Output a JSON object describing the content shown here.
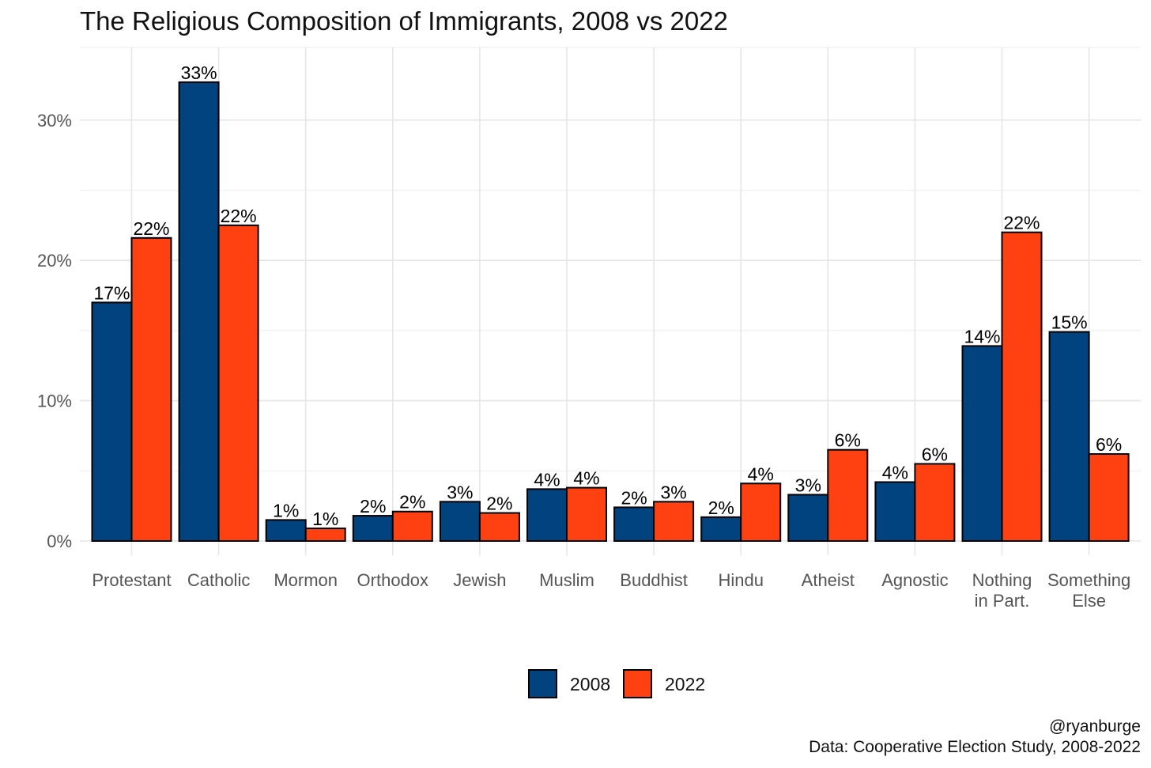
{
  "chart_data": {
    "type": "bar",
    "title": "The Religious Composition of Immigrants, 2008 vs 2022",
    "xlabel": "",
    "ylabel": "",
    "ylim": [
      0,
      34
    ],
    "yticks": [
      0,
      10,
      20,
      30
    ],
    "ytick_labels": [
      "0%",
      "10%",
      "20%",
      "30%"
    ],
    "grid": true,
    "legend_position": "bottom",
    "categories": [
      [
        "Protestant"
      ],
      [
        "Catholic"
      ],
      [
        "Mormon"
      ],
      [
        "Orthodox"
      ],
      [
        "Jewish"
      ],
      [
        "Muslim"
      ],
      [
        "Buddhist"
      ],
      [
        "Hindu"
      ],
      [
        "Atheist"
      ],
      [
        "Agnostic"
      ],
      [
        "Nothing",
        "in Part."
      ],
      [
        "Something",
        "Else"
      ]
    ],
    "series": [
      {
        "name": "2008",
        "color": "#00437f",
        "values": [
          17.0,
          32.7,
          1.5,
          1.8,
          2.8,
          3.7,
          2.4,
          1.7,
          3.3,
          4.2,
          13.9,
          14.9
        ],
        "labels": [
          "17%",
          "33%",
          "1%",
          "2%",
          "3%",
          "4%",
          "2%",
          "2%",
          "3%",
          "4%",
          "14%",
          "15%"
        ]
      },
      {
        "name": "2022",
        "color": "#ff4112",
        "values": [
          21.6,
          22.5,
          0.9,
          2.1,
          2.0,
          3.8,
          2.8,
          4.1,
          6.5,
          5.5,
          22.0,
          6.2
        ],
        "labels": [
          "22%",
          "22%",
          "1%",
          "2%",
          "2%",
          "4%",
          "3%",
          "4%",
          "6%",
          "6%",
          "22%",
          "6%"
        ]
      }
    ],
    "caption": [
      "@ryanburge",
      "Data: Cooperative Election Study, 2008-2022"
    ]
  }
}
